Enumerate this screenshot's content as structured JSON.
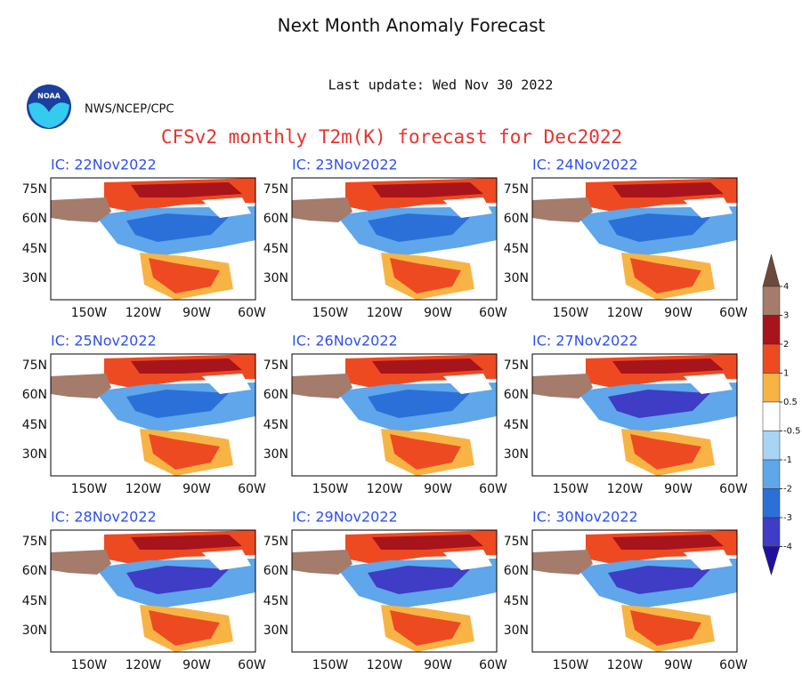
{
  "header": {
    "title": "Next Month Anomaly Forecast",
    "last_update": "Last update: Wed Nov 30 2022",
    "agency": "NWS/NCEP/CPC",
    "logo_text": "NOAA",
    "subtitle": "CFSv2 monthly T2m(K) forecast for Dec2022"
  },
  "panels": [
    {
      "title": "IC: 22Nov2022"
    },
    {
      "title": "IC: 23Nov2022"
    },
    {
      "title": "IC: 24Nov2022"
    },
    {
      "title": "IC: 25Nov2022"
    },
    {
      "title": "IC: 26Nov2022"
    },
    {
      "title": "IC: 27Nov2022"
    },
    {
      "title": "IC: 28Nov2022"
    },
    {
      "title": "IC: 29Nov2022"
    },
    {
      "title": "IC: 30Nov2022"
    }
  ],
  "lat_labels": [
    "75N",
    "60N",
    "45N",
    "30N"
  ],
  "lon_labels": [
    "150W",
    "120W",
    "90W",
    "60W"
  ],
  "colorbar": {
    "ticks": [
      4,
      3,
      2,
      1,
      0.5,
      -0.5,
      -1,
      -2,
      -3,
      -4
    ],
    "colors": [
      "#6b4a3c",
      "#a57b6c",
      "#a8141c",
      "#ee4a22",
      "#f7b445",
      "#ffffff",
      "#a8d5f4",
      "#5fa6ea",
      "#2b70d8",
      "#3f3cc6",
      "#21109e"
    ]
  }
}
